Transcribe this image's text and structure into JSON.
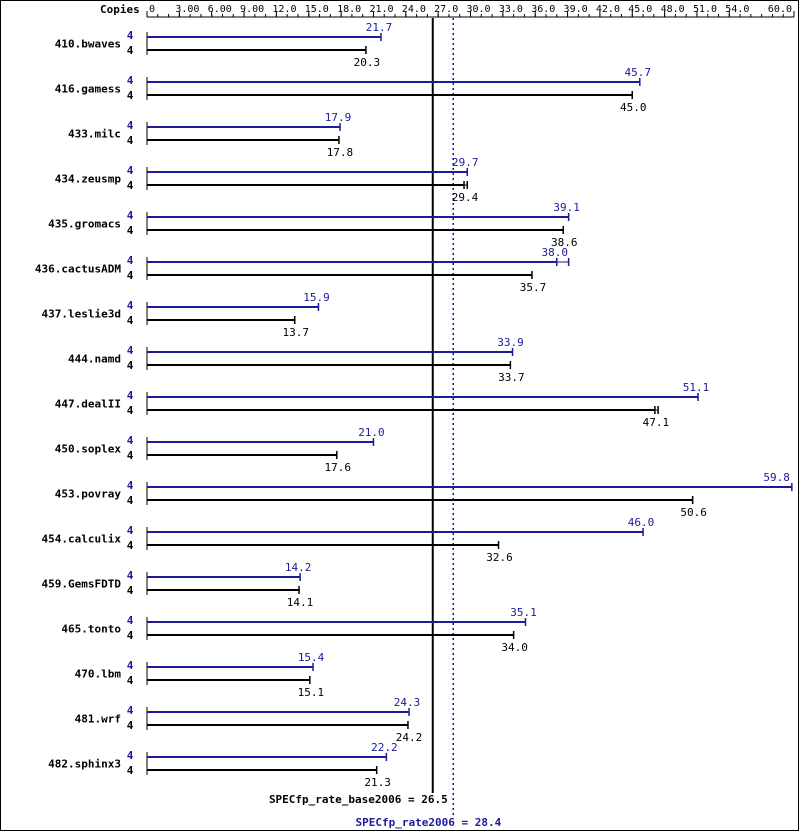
{
  "chart_data": {
    "type": "bar",
    "orientation": "horizontal",
    "x_axis_position": "top",
    "xlim": [
      0,
      60
    ],
    "x_tick_labels": [
      "0",
      "3.00",
      "6.00",
      "9.00",
      "12.0",
      "15.0",
      "18.0",
      "21.0",
      "24.0",
      "27.0",
      "30.0",
      "33.0",
      "36.0",
      "39.0",
      "42.0",
      "45.0",
      "48.0",
      "51.0",
      "54.0",
      "60.0"
    ],
    "x_tick_values": [
      0,
      3,
      6,
      9,
      12,
      15,
      18,
      21,
      24,
      27,
      30,
      33,
      36,
      39,
      42,
      45,
      48,
      51,
      54,
      60
    ],
    "copies_label": "Copies",
    "colors": {
      "peak": "#1a1a9a",
      "base": "#000000",
      "frame": "#000000"
    },
    "categories": [
      "410.bwaves",
      "416.gamess",
      "433.milc",
      "434.zeusmp",
      "435.gromacs",
      "436.cactusADM",
      "437.leslie3d",
      "444.namd",
      "447.dealII",
      "450.soplex",
      "453.povray",
      "454.calculix",
      "459.GemsFDTD",
      "465.tonto",
      "470.lbm",
      "481.wrf",
      "482.sphinx3"
    ],
    "series": [
      {
        "role": "peak",
        "copies": [
          4,
          4,
          4,
          4,
          4,
          4,
          4,
          4,
          4,
          4,
          4,
          4,
          4,
          4,
          4,
          4,
          4
        ],
        "values": [
          21.7,
          45.7,
          17.9,
          29.7,
          39.1,
          38.0,
          15.9,
          33.9,
          51.1,
          21.0,
          59.8,
          46.0,
          14.2,
          35.1,
          15.4,
          24.3,
          22.2
        ],
        "labels": [
          "21.7",
          "45.7",
          "17.9",
          "29.7",
          "39.1",
          "38.0",
          "15.9",
          "33.9",
          "51.1",
          "21.0",
          "59.8",
          "46.0",
          "14.2",
          "35.1",
          "15.4",
          "24.3",
          "22.2"
        ],
        "whisker_max": [
          21.7,
          45.7,
          17.9,
          29.7,
          39.1,
          39.1,
          15.9,
          33.9,
          51.1,
          21.0,
          59.8,
          46.0,
          14.2,
          35.1,
          15.4,
          24.3,
          22.2
        ]
      },
      {
        "role": "base",
        "copies": [
          4,
          4,
          4,
          4,
          4,
          4,
          4,
          4,
          4,
          4,
          4,
          4,
          4,
          4,
          4,
          4,
          4
        ],
        "values": [
          20.3,
          45.0,
          17.8,
          29.4,
          38.6,
          35.7,
          13.7,
          33.7,
          47.1,
          17.6,
          50.6,
          32.6,
          14.1,
          34.0,
          15.1,
          24.2,
          21.3
        ],
        "labels": [
          "20.3",
          "45.0",
          "17.8",
          "29.4",
          "38.6",
          "35.7",
          "13.7",
          "33.7",
          "47.1",
          "17.6",
          "50.6",
          "32.6",
          "14.1",
          "34.0",
          "15.1",
          "24.2",
          "21.3"
        ],
        "whisker_max": [
          20.3,
          45.0,
          17.8,
          29.7,
          38.6,
          35.7,
          13.7,
          33.7,
          47.4,
          17.6,
          50.6,
          32.6,
          14.1,
          34.0,
          15.1,
          24.2,
          21.3
        ]
      }
    ],
    "reference_lines": [
      {
        "role": "base",
        "value": 26.5,
        "label": "SPECfp_rate_base2006 = 26.5",
        "style": "solid"
      },
      {
        "role": "peak",
        "value": 28.4,
        "label": "SPECfp_rate2006 = 28.4",
        "style": "dotted"
      }
    ]
  }
}
